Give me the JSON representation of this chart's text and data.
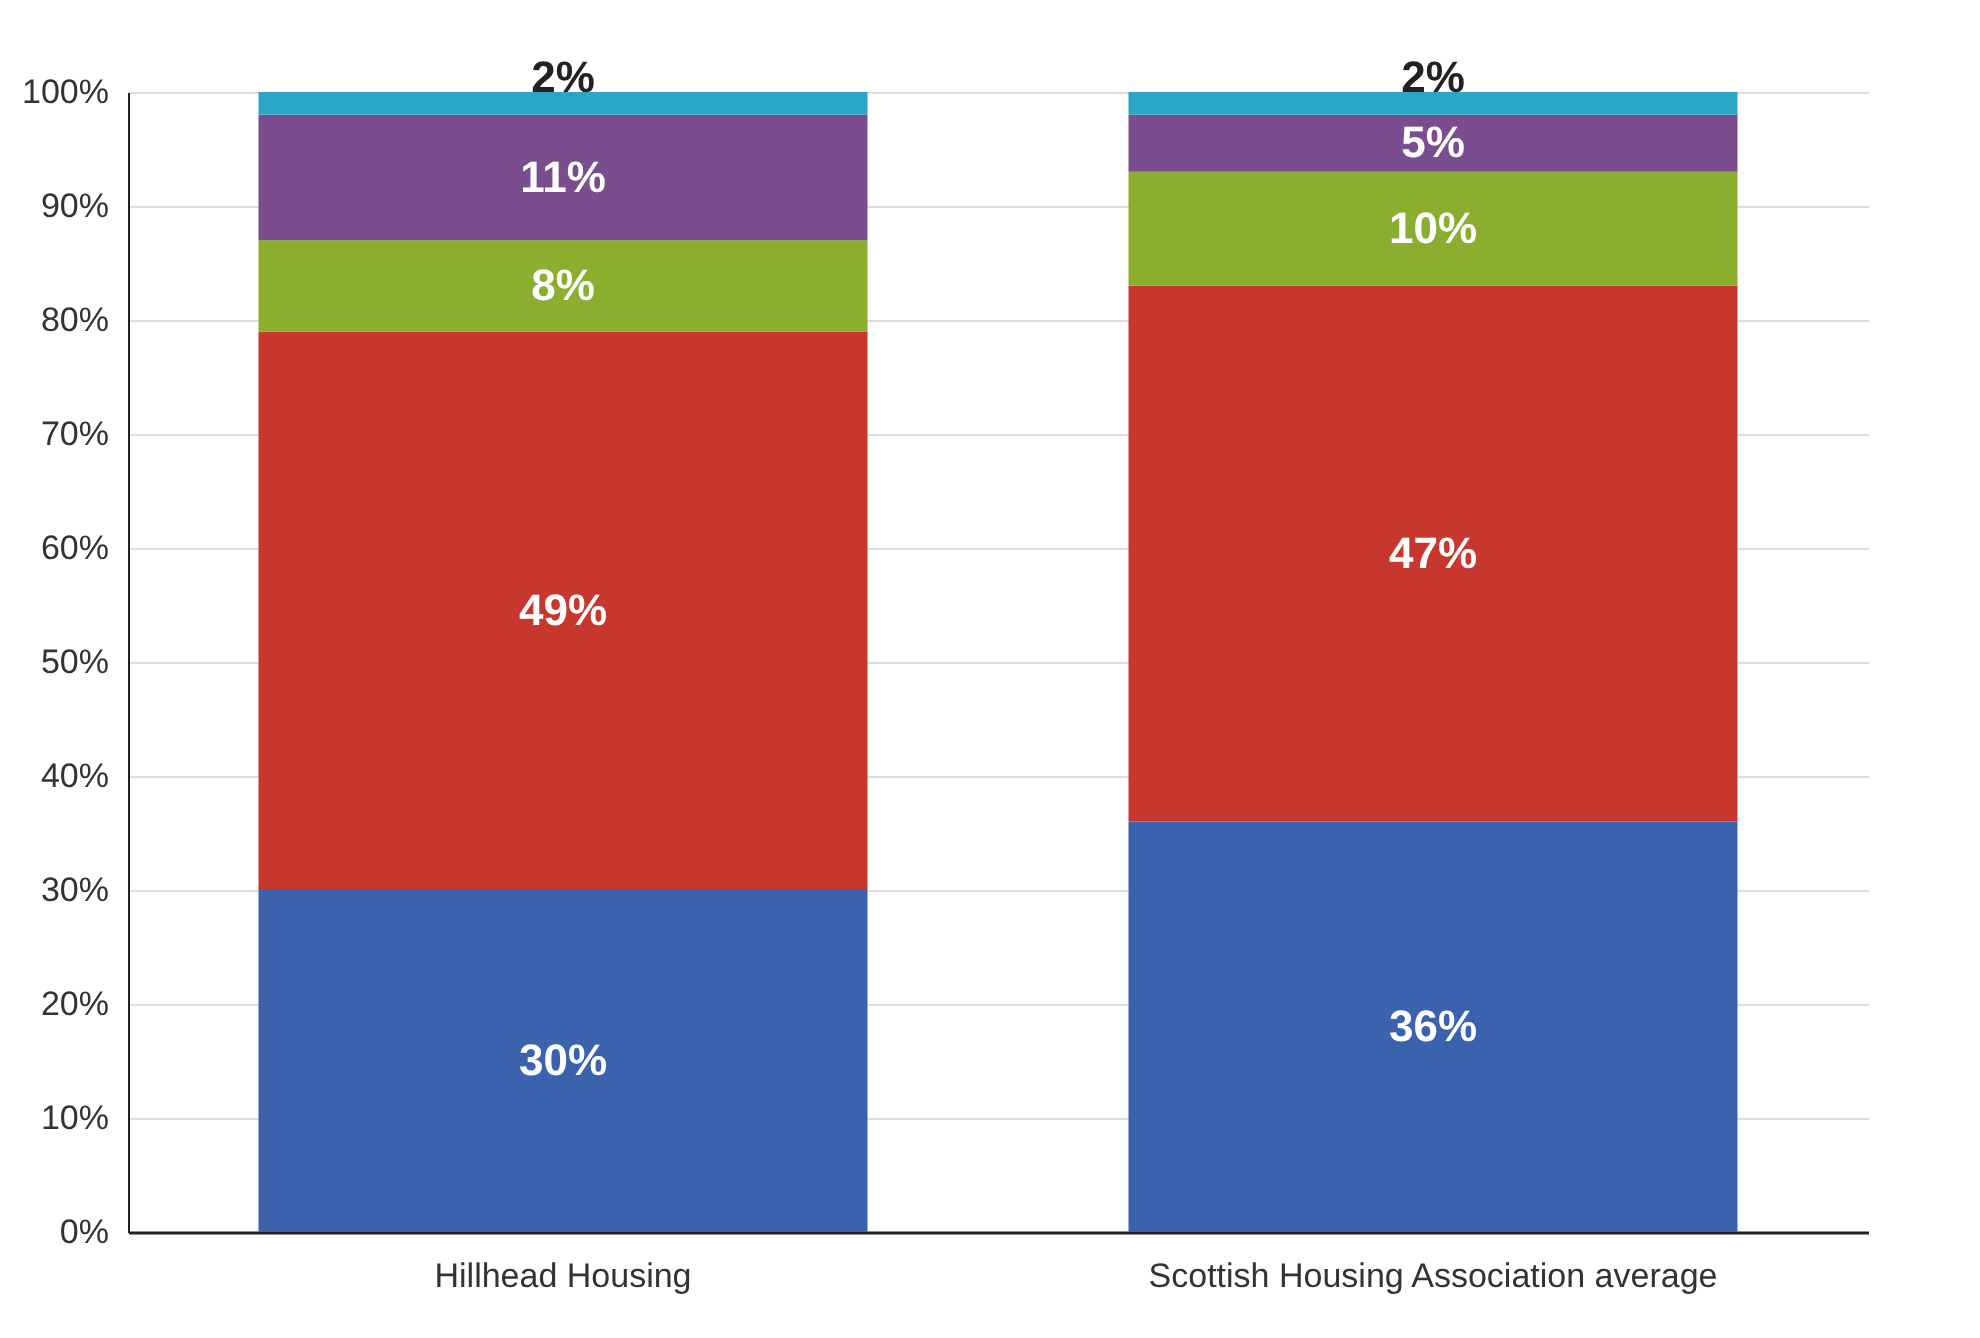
{
  "chart_data": {
    "type": "bar",
    "stacked": true,
    "categories": [
      "Hillhead Housing",
      "Scottish Housing Association average"
    ],
    "series": [
      {
        "color": "#3a62ad",
        "values": [
          30,
          36
        ],
        "value_labels": [
          "30%",
          "36%"
        ]
      },
      {
        "color": "#c8372d",
        "values": [
          49,
          47
        ],
        "value_labels": [
          "49%",
          "47%"
        ]
      },
      {
        "color": "#8cae2e",
        "values": [
          8,
          10
        ],
        "value_labels": [
          "8%",
          "10%"
        ]
      },
      {
        "color": "#7a4d8e",
        "values": [
          11,
          5
        ],
        "value_labels": [
          "11%",
          "5%"
        ]
      },
      {
        "color": "#2ba6c6",
        "values": [
          2,
          2
        ],
        "value_labels": [
          "2%",
          "2%"
        ]
      }
    ],
    "ylim": [
      0,
      100
    ],
    "yticks": [
      {
        "value": 0,
        "label": "0%"
      },
      {
        "value": 10,
        "label": "10%"
      },
      {
        "value": 20,
        "label": "20%"
      },
      {
        "value": 30,
        "label": "30%"
      },
      {
        "value": 40,
        "label": "40%"
      },
      {
        "value": 50,
        "label": "50%"
      },
      {
        "value": 60,
        "label": "60%"
      },
      {
        "value": 70,
        "label": "70%"
      },
      {
        "value": 80,
        "label": "80%"
      },
      {
        "value": 90,
        "label": "90%"
      },
      {
        "value": 100,
        "label": "100%"
      }
    ],
    "grid": "y",
    "legend": false
  }
}
